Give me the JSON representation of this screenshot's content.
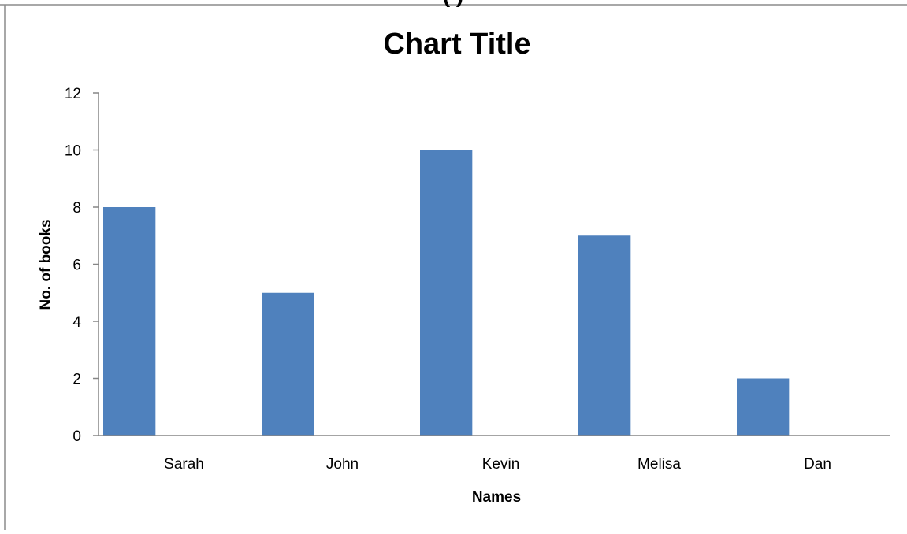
{
  "chart_data": {
    "type": "bar",
    "title": "Chart Title",
    "cropped_top_text": "(  )",
    "xlabel": "Names",
    "ylabel": "No. of books",
    "categories": [
      "Sarah",
      "John",
      "Kevin",
      "Melisa",
      "Dan"
    ],
    "series": [
      {
        "values": [
          8,
          5,
          10,
          7,
          2
        ]
      }
    ],
    "ylim": [
      0,
      12
    ],
    "yticks": [
      0,
      2,
      4,
      6,
      8,
      10,
      12
    ],
    "grid": false,
    "legend": "none",
    "bar_color": "#4f81bd"
  }
}
